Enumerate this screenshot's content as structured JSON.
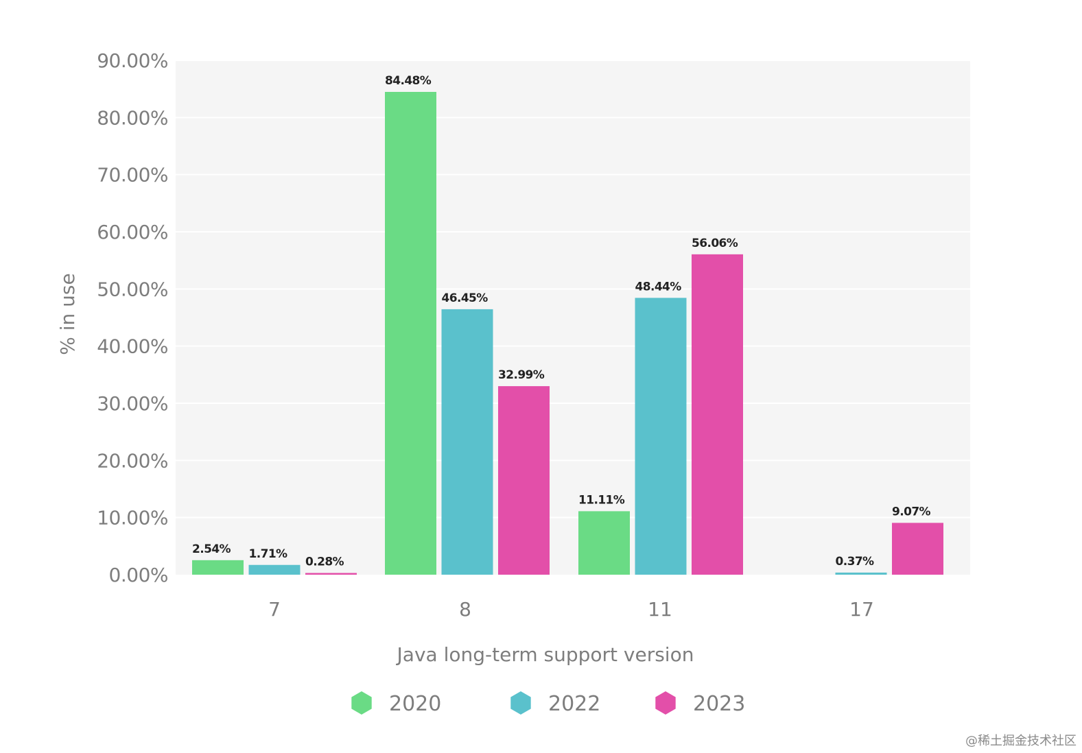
{
  "chart_data": {
    "type": "bar",
    "title": "",
    "xlabel": "Java long-term support version",
    "ylabel": "% in use",
    "categories": [
      "7",
      "8",
      "11",
      "17"
    ],
    "series": [
      {
        "name": "2020",
        "color": "#6adb85",
        "values": [
          2.54,
          84.48,
          11.11,
          null
        ],
        "labels": [
          "2.54%",
          "84.48%",
          "11.11%",
          ""
        ]
      },
      {
        "name": "2022",
        "color": "#5ac1cc",
        "values": [
          1.71,
          46.45,
          48.44,
          0.37
        ],
        "labels": [
          "1.71%",
          "46.45%",
          "48.44%",
          "0.37%"
        ]
      },
      {
        "name": "2023",
        "color": "#e34fa9",
        "values": [
          0.28,
          32.99,
          56.06,
          9.07
        ],
        "labels": [
          "0.28%",
          "32.99%",
          "56.06%",
          "9.07%"
        ]
      }
    ],
    "ylim": [
      0,
      90
    ],
    "yticks": [
      0,
      10,
      20,
      30,
      40,
      50,
      60,
      70,
      80,
      90
    ],
    "ytick_labels": [
      "0.00%",
      "10.00%",
      "20.00%",
      "30.00%",
      "40.00%",
      "50.00%",
      "60.00%",
      "70.00%",
      "80.00%",
      "90.00%"
    ],
    "grid": true,
    "legend": "bottom-center",
    "plot_background": "#f5f5f5"
  },
  "watermark": "@稀土掘金技术社区"
}
